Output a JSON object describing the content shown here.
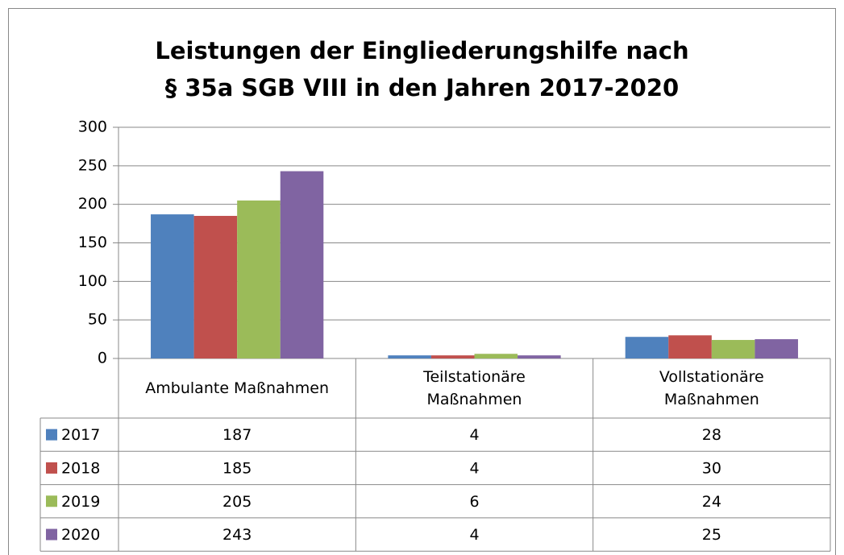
{
  "chart_data": {
    "type": "bar",
    "title": "Leistungen der Eingliederungshilfe nach\n§ 35a SGB VIII in den Jahren 2017-2020",
    "categories": [
      "Ambulante Maßnahmen",
      "Teilstationäre\nMaßnahmen",
      "Vollstationäre\nMaßnahmen"
    ],
    "series": [
      {
        "name": "2017",
        "color": "#4f81bd",
        "values": [
          187,
          4,
          28
        ]
      },
      {
        "name": "2018",
        "color": "#c0504d",
        "values": [
          185,
          4,
          30
        ]
      },
      {
        "name": "2019",
        "color": "#9bbb59",
        "values": [
          205,
          6,
          24
        ]
      },
      {
        "name": "2020",
        "color": "#8064a2",
        "values": [
          243,
          4,
          25
        ]
      }
    ],
    "ylim": [
      0,
      300
    ],
    "yticks": [
      0,
      50,
      100,
      150,
      200,
      250,
      300
    ],
    "grid": true,
    "data_table": true
  }
}
